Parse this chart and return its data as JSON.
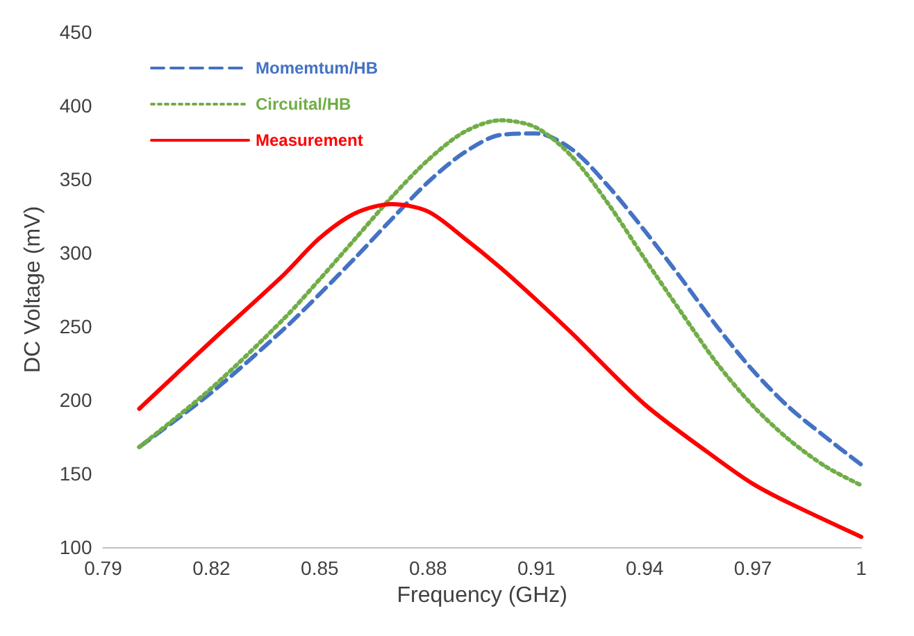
{
  "chart_data": {
    "type": "line",
    "xlabel": "Frequency (GHz)",
    "ylabel": "DC Voltage (mV)",
    "xlim": [
      0.79,
      1
    ],
    "xticks": [
      0.79,
      0.82,
      0.85,
      0.88,
      0.91,
      0.94,
      0.97,
      1
    ],
    "ylim": [
      100,
      450
    ],
    "yticks": [
      100,
      150,
      200,
      250,
      300,
      350,
      400,
      450
    ],
    "grid": false,
    "legend": "top left",
    "series": [
      {
        "name": "Momemtum/HB",
        "color": "#4472c4",
        "line_style": "dashed",
        "x": [
          0.8,
          0.82,
          0.84,
          0.85,
          0.86,
          0.87,
          0.88,
          0.89,
          0.9,
          0.91,
          0.92,
          0.93,
          0.94,
          0.95,
          0.96,
          0.97,
          0.98,
          0.99,
          1
        ],
        "values": [
          168,
          205,
          248,
          272,
          297,
          323,
          348,
          368,
          380,
          381,
          370,
          345,
          315,
          283,
          250,
          220,
          195,
          175,
          156
        ]
      },
      {
        "name": "Circuital/HB",
        "color": "#70ad47",
        "line_style": "dotted",
        "x": [
          0.8,
          0.82,
          0.84,
          0.85,
          0.86,
          0.87,
          0.88,
          0.89,
          0.9,
          0.91,
          0.92,
          0.93,
          0.94,
          0.95,
          0.96,
          0.97,
          0.98,
          0.99,
          1
        ],
        "values": [
          168,
          208,
          255,
          282,
          310,
          338,
          363,
          382,
          390,
          385,
          365,
          333,
          296,
          260,
          225,
          196,
          173,
          155,
          142
        ]
      },
      {
        "name": "Measurement",
        "color": "#ff0000",
        "line_style": "solid",
        "x": [
          0.8,
          0.82,
          0.84,
          0.85,
          0.86,
          0.87,
          0.88,
          0.89,
          0.9,
          0.91,
          0.92,
          0.94,
          0.96,
          0.97,
          0.98,
          1
        ],
        "values": [
          194,
          240,
          285,
          310,
          327,
          333,
          328,
          310,
          290,
          268,
          245,
          197,
          160,
          143,
          130,
          107
        ]
      }
    ]
  }
}
